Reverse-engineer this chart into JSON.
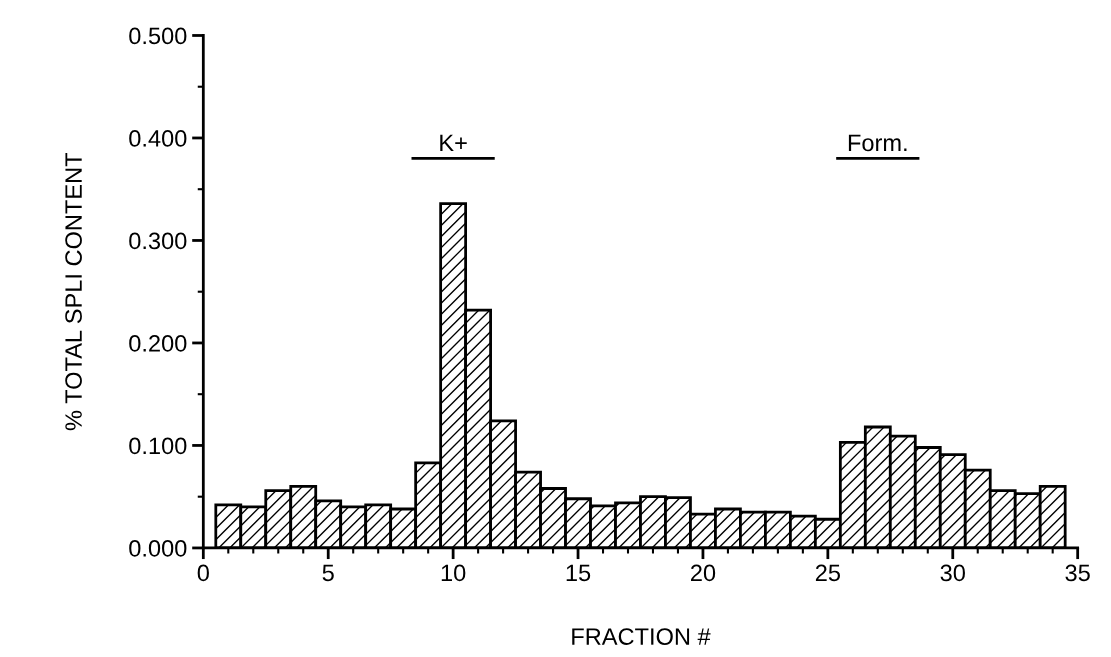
{
  "chart_data": {
    "type": "histogram",
    "xlabel": "FRACTION #",
    "ylabel": "% TOTAL SPLI CONTENT",
    "bins": [
      0.5,
      1.5,
      2.5,
      3.5,
      4.5,
      5.5,
      6.5,
      7.5,
      8.5,
      9.5,
      10.5,
      11.5,
      12.5,
      13.5,
      14.5,
      15.5,
      16.5,
      17.5,
      18.5,
      19.5,
      20.5,
      21.5,
      22.5,
      23.5,
      24.5,
      25.5,
      26.5,
      27.5,
      28.5,
      29.5,
      30.5,
      31.5,
      32.5,
      33.5,
      34.5
    ],
    "values": [
      0.042,
      0.04,
      0.056,
      0.06,
      0.046,
      0.04,
      0.042,
      0.038,
      0.083,
      0.336,
      0.232,
      0.124,
      0.074,
      0.058,
      0.048,
      0.041,
      0.044,
      0.05,
      0.049,
      0.033,
      0.038,
      0.035,
      0.035,
      0.031,
      0.028,
      0.103,
      0.118,
      0.109,
      0.098,
      0.091,
      0.076,
      0.056,
      0.053,
      0.06
    ],
    "color": "#000000",
    "xlim": [
      0,
      35
    ],
    "xticks": [
      0,
      5,
      10,
      15,
      20,
      25,
      30,
      35
    ],
    "ylim": [
      0,
      0.5
    ],
    "yticks": [
      {
        "value": 0,
        "label": "0.000"
      },
      {
        "value": 0.1,
        "label": "0.100"
      },
      {
        "value": 0.2,
        "label": "0.200"
      },
      {
        "value": 0.3,
        "label": "0.300"
      },
      {
        "value": 0.4,
        "label": "0.400"
      },
      {
        "value": 0.5,
        "label": "0.500"
      }
    ],
    "annotations": [
      "K+",
      "Form."
    ],
    "grid": false
  }
}
